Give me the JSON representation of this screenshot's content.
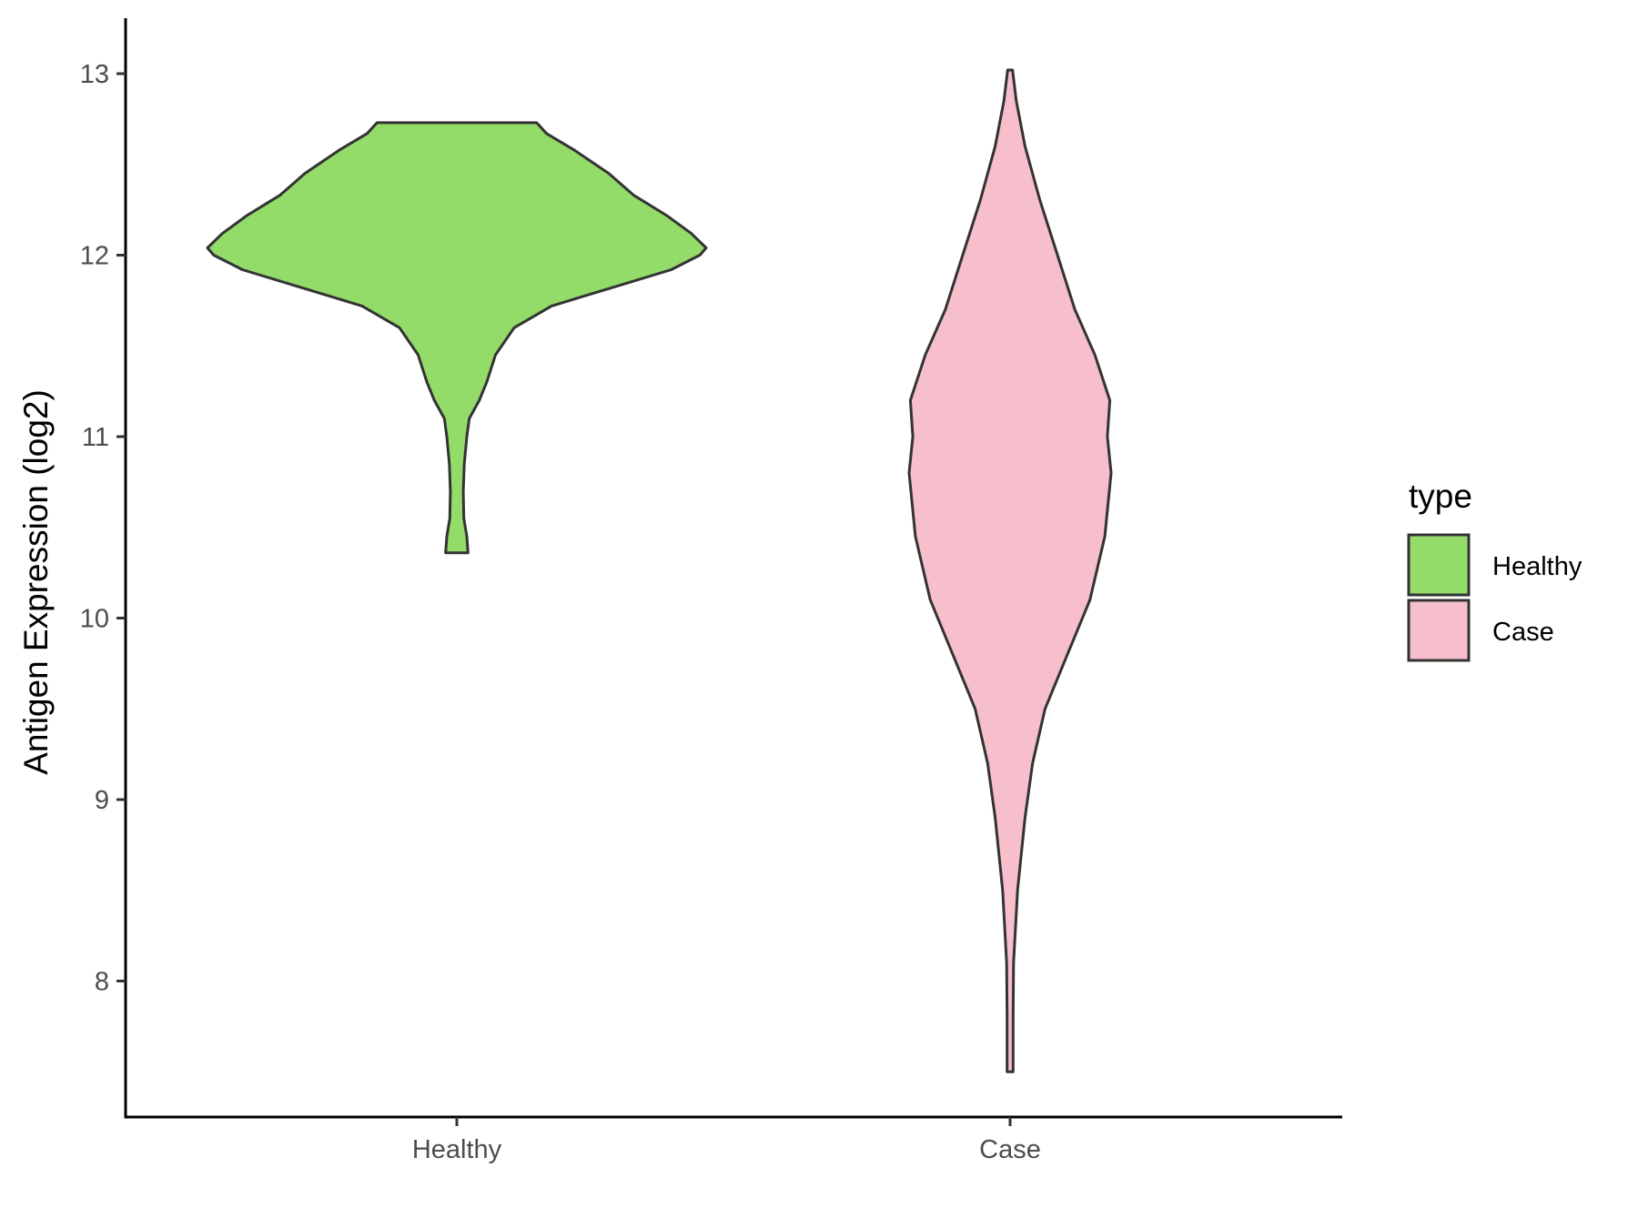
{
  "chart_data": {
    "type": "violin",
    "ylabel": "Antigen Expression (log2)",
    "xlabel": "",
    "ylim": [
      7.3,
      13.3
    ],
    "y_ticks": [
      8,
      9,
      10,
      11,
      12,
      13
    ],
    "categories": [
      "Healthy",
      "Case"
    ],
    "grid": false,
    "legend": {
      "title": "type",
      "position": "right",
      "entries": [
        {
          "label": "Healthy",
          "color": "#93dc69"
        },
        {
          "label": "Case",
          "color": "#f7bfcb"
        }
      ]
    },
    "series": [
      {
        "name": "Healthy",
        "color": "#93dc69",
        "y_min": 10.36,
        "y_max": 12.73,
        "density": [
          [
            10.36,
            0.045
          ],
          [
            10.45,
            0.04
          ],
          [
            10.55,
            0.028
          ],
          [
            10.7,
            0.026
          ],
          [
            10.85,
            0.03
          ],
          [
            11.0,
            0.04
          ],
          [
            11.1,
            0.05
          ],
          [
            11.2,
            0.09
          ],
          [
            11.3,
            0.12
          ],
          [
            11.45,
            0.155
          ],
          [
            11.6,
            0.23
          ],
          [
            11.72,
            0.38
          ],
          [
            11.82,
            0.62
          ],
          [
            11.92,
            0.86
          ],
          [
            12.0,
            0.975
          ],
          [
            12.04,
            1.0
          ],
          [
            12.12,
            0.94
          ],
          [
            12.22,
            0.84
          ],
          [
            12.33,
            0.71
          ],
          [
            12.45,
            0.61
          ],
          [
            12.58,
            0.47
          ],
          [
            12.67,
            0.36
          ],
          [
            12.73,
            0.32
          ]
        ]
      },
      {
        "name": "Case",
        "color": "#f7bfcb",
        "y_min": 7.5,
        "y_max": 13.02,
        "density": [
          [
            7.5,
            0.012
          ],
          [
            7.8,
            0.012
          ],
          [
            8.1,
            0.014
          ],
          [
            8.5,
            0.03
          ],
          [
            8.9,
            0.06
          ],
          [
            9.2,
            0.09
          ],
          [
            9.5,
            0.14
          ],
          [
            9.8,
            0.23
          ],
          [
            10.1,
            0.32
          ],
          [
            10.45,
            0.38
          ],
          [
            10.8,
            0.405
          ],
          [
            11.0,
            0.39
          ],
          [
            11.2,
            0.4
          ],
          [
            11.45,
            0.34
          ],
          [
            11.7,
            0.26
          ],
          [
            12.0,
            0.19
          ],
          [
            12.3,
            0.12
          ],
          [
            12.6,
            0.06
          ],
          [
            12.85,
            0.025
          ],
          [
            13.02,
            0.01
          ]
        ]
      }
    ]
  }
}
